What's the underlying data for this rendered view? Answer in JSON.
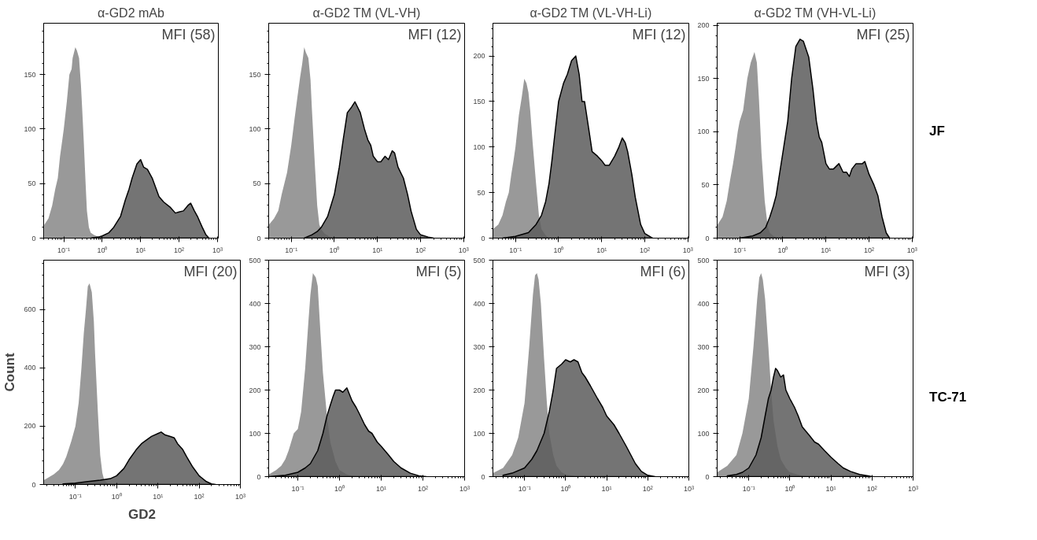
{
  "chart_data": [
    {
      "type": "area",
      "log": "x",
      "title": "α-GD2 mAb",
      "xlim": [
        0.03,
        1050
      ],
      "ylim": [
        0,
        197
      ],
      "xticks": [
        {
          "value": 0.1,
          "label": "10⁻¹"
        },
        {
          "value": 1,
          "label": "10⁰"
        },
        {
          "value": 10,
          "label": "10¹"
        },
        {
          "value": 100,
          "label": "10²"
        },
        {
          "value": 1000,
          "label": "10³"
        }
      ],
      "yticks": [
        0,
        50,
        100,
        150
      ],
      "annotations": [
        "MFI (58)"
      ],
      "series": [
        {
          "color": "#999999",
          "x": [
            0.031,
            0.04,
            0.05,
            0.06,
            0.07,
            0.08,
            0.09,
            0.1,
            0.12,
            0.14,
            0.16,
            0.17,
            0.2,
            0.22,
            0.25,
            0.28,
            0.3,
            0.33,
            0.37,
            0.4,
            0.45,
            0.5,
            0.6,
            0.8,
            1
          ],
          "values": [
            12,
            18,
            30,
            45,
            55,
            75,
            88,
            100,
            125,
            150,
            155,
            165,
            175,
            172,
            165,
            140,
            120,
            90,
            50,
            25,
            10,
            5,
            3,
            1,
            0
          ]
        },
        {
          "color": "#5c5c5c",
          "x": [
            0.5,
            0.8,
            1,
            1.5,
            2,
            3,
            4,
            5,
            6,
            8,
            10,
            12,
            15,
            20,
            30,
            40,
            60,
            80,
            100,
            130,
            170,
            200,
            250,
            300,
            400,
            500,
            600
          ],
          "values": [
            0,
            1,
            2,
            5,
            10,
            20,
            35,
            45,
            55,
            68,
            72,
            65,
            63,
            55,
            38,
            33,
            28,
            23,
            24,
            25,
            30,
            32,
            25,
            20,
            10,
            3,
            0
          ]
        }
      ]
    },
    {
      "type": "area",
      "log": "x",
      "title": "α-GD2 TM (VL-VH)",
      "xlim": [
        0.03,
        1050
      ],
      "ylim": [
        0,
        197
      ],
      "xticks": [
        {
          "value": 0.1,
          "label": "10⁻¹"
        },
        {
          "value": 1,
          "label": "10⁰"
        },
        {
          "value": 10,
          "label": "10¹"
        },
        {
          "value": 100,
          "label": "10²"
        },
        {
          "value": 1000,
          "label": "10³"
        }
      ],
      "yticks": [
        0,
        50,
        100,
        150
      ],
      "annotations": [
        "MFI (12)"
      ],
      "series": [
        {
          "color": "#999999",
          "x": [
            0.03,
            0.04,
            0.05,
            0.06,
            0.08,
            0.1,
            0.12,
            0.14,
            0.16,
            0.18,
            0.2,
            0.22,
            0.25,
            0.28,
            0.3,
            0.35,
            0.4,
            0.45,
            0.5,
            0.6,
            0.8,
            1
          ],
          "values": [
            12,
            18,
            25,
            40,
            60,
            85,
            110,
            130,
            147,
            160,
            175,
            170,
            165,
            145,
            120,
            70,
            30,
            12,
            8,
            4,
            1,
            0
          ]
        },
        {
          "color": "#5c5c5c",
          "x": [
            0.2,
            0.3,
            0.4,
            0.5,
            0.7,
            1,
            1.3,
            1.6,
            2,
            2.5,
            3,
            4,
            5,
            6,
            7,
            8,
            10,
            12,
            15,
            18,
            22,
            25,
            30,
            40,
            50,
            60,
            80,
            100,
            150,
            200
          ],
          "values": [
            0,
            3,
            6,
            10,
            20,
            40,
            65,
            90,
            115,
            120,
            125,
            115,
            100,
            90,
            85,
            75,
            70,
            70,
            75,
            72,
            80,
            78,
            65,
            55,
            40,
            25,
            8,
            3,
            1,
            0
          ]
        }
      ]
    },
    {
      "type": "area",
      "log": "x",
      "title": "α-GD2 TM (VL-VH-Li)",
      "xlim": [
        0.03,
        1050
      ],
      "ylim": [
        0,
        236
      ],
      "xticks": [
        {
          "value": 0.1,
          "label": "10⁻¹"
        },
        {
          "value": 1,
          "label": "10⁰"
        },
        {
          "value": 10,
          "label": "10¹"
        },
        {
          "value": 100,
          "label": "10²"
        },
        {
          "value": 1000,
          "label": "10³"
        }
      ],
      "yticks": [
        0,
        50,
        100,
        150,
        200
      ],
      "annotations": [
        "MFI (12)"
      ],
      "series": [
        {
          "color": "#999999",
          "x": [
            0.03,
            0.04,
            0.05,
            0.06,
            0.07,
            0.08,
            0.09,
            0.1,
            0.12,
            0.14,
            0.16,
            0.18,
            0.2,
            0.22,
            0.25,
            0.3,
            0.35,
            0.4,
            0.5,
            0.6
          ],
          "values": [
            10,
            15,
            25,
            40,
            50,
            70,
            85,
            100,
            135,
            155,
            175,
            170,
            160,
            140,
            105,
            60,
            25,
            10,
            3,
            0
          ]
        },
        {
          "color": "#5c5c5c",
          "x": [
            0.05,
            0.1,
            0.2,
            0.3,
            0.4,
            0.5,
            0.6,
            0.7,
            0.8,
            1,
            1.3,
            1.6,
            2,
            2.5,
            3,
            3.5,
            4,
            5,
            6,
            8,
            10,
            12,
            15,
            20,
            25,
            30,
            35,
            40,
            50,
            60,
            80,
            100,
            150
          ],
          "values": [
            0,
            2,
            6,
            15,
            25,
            40,
            60,
            85,
            110,
            150,
            170,
            180,
            195,
            200,
            180,
            150,
            150,
            120,
            95,
            90,
            85,
            80,
            80,
            90,
            100,
            110,
            105,
            95,
            70,
            45,
            15,
            5,
            0
          ]
        }
      ]
    },
    {
      "type": "area",
      "log": "x",
      "title": "α-GD2 TM (VH-VL-Li)",
      "xlim": [
        0.03,
        1050
      ],
      "ylim": [
        0,
        202
      ],
      "xticks": [
        {
          "value": 0.1,
          "label": "10⁻¹"
        },
        {
          "value": 1,
          "label": "10⁰"
        },
        {
          "value": 10,
          "label": "10¹"
        },
        {
          "value": 100,
          "label": "10²"
        },
        {
          "value": 1000,
          "label": "10³"
        }
      ],
      "yticks": [
        0,
        50,
        100,
        150,
        200
      ],
      "annotations": [
        "MFI (25)",
        "JF"
      ],
      "series": [
        {
          "color": "#999999",
          "x": [
            0.03,
            0.04,
            0.05,
            0.06,
            0.07,
            0.08,
            0.09,
            0.1,
            0.12,
            0.15,
            0.18,
            0.22,
            0.25,
            0.28,
            0.32,
            0.38,
            0.45,
            0.5,
            0.6,
            0.8
          ],
          "values": [
            12,
            20,
            35,
            55,
            70,
            85,
            100,
            110,
            120,
            150,
            165,
            175,
            165,
            130,
            80,
            35,
            10,
            5,
            2,
            0
          ]
        },
        {
          "color": "#5c5c5c",
          "x": [
            0.1,
            0.2,
            0.3,
            0.4,
            0.5,
            0.6,
            0.7,
            0.8,
            1,
            1.3,
            1.6,
            2,
            2.5,
            3,
            4,
            5,
            6,
            7,
            8,
            10,
            12,
            15,
            20,
            25,
            30,
            35,
            40,
            50,
            70,
            80,
            100,
            130,
            160,
            200,
            250,
            300
          ],
          "values": [
            0,
            2,
            5,
            10,
            20,
            30,
            40,
            55,
            80,
            110,
            150,
            180,
            187,
            185,
            170,
            140,
            110,
            95,
            90,
            70,
            65,
            65,
            70,
            62,
            62,
            58,
            65,
            70,
            70,
            72,
            60,
            50,
            40,
            20,
            5,
            0
          ]
        }
      ]
    },
    {
      "type": "area",
      "log": "x",
      "xlabel": "GD2",
      "ylabel": "Count",
      "xlim": [
        0.017,
        1000
      ],
      "ylim": [
        0,
        770
      ],
      "xticks": [
        {
          "value": 0.1,
          "label": "10⁻¹"
        },
        {
          "value": 1,
          "label": "10⁰"
        },
        {
          "value": 10,
          "label": "10¹"
        },
        {
          "value": 100,
          "label": "10²"
        },
        {
          "value": 1000,
          "label": "10³"
        }
      ],
      "yticks": [
        0,
        200,
        400,
        600
      ],
      "annotations": [
        "MFI (20)"
      ],
      "series": [
        {
          "color": "#999999",
          "x": [
            0.017,
            0.02,
            0.03,
            0.04,
            0.05,
            0.06,
            0.08,
            0.1,
            0.12,
            0.14,
            0.16,
            0.18,
            0.2,
            0.22,
            0.25,
            0.28,
            0.3,
            0.35,
            0.4,
            0.45,
            0.5,
            0.6,
            0.8
          ],
          "values": [
            15,
            20,
            35,
            50,
            70,
            95,
            150,
            200,
            280,
            400,
            520,
            600,
            680,
            690,
            660,
            560,
            450,
            250,
            100,
            40,
            15,
            5,
            0
          ]
        },
        {
          "color": "#5c5c5c",
          "x": [
            0.05,
            0.1,
            0.2,
            0.4,
            0.7,
            1,
            1.5,
            2,
            3,
            4,
            5,
            7,
            10,
            12,
            15,
            20,
            25,
            30,
            40,
            50,
            70,
            100,
            150,
            200,
            250
          ],
          "values": [
            2,
            5,
            10,
            15,
            20,
            30,
            55,
            85,
            120,
            140,
            150,
            165,
            175,
            180,
            170,
            165,
            160,
            140,
            120,
            95,
            60,
            30,
            10,
            2,
            0
          ]
        }
      ]
    },
    {
      "type": "area",
      "log": "x",
      "xlim": [
        0.02,
        1000
      ],
      "ylim": [
        0,
        500
      ],
      "xticks": [
        {
          "value": 0.1,
          "label": "10⁻¹"
        },
        {
          "value": 1,
          "label": "10⁰"
        },
        {
          "value": 10,
          "label": "10¹"
        },
        {
          "value": 100,
          "label": "10²"
        },
        {
          "value": 1000,
          "label": "10³"
        }
      ],
      "yticks": [
        0,
        100,
        200,
        300,
        400,
        500
      ],
      "annotations": [
        "MFI (5)"
      ],
      "series": [
        {
          "color": "#999999",
          "x": [
            0.02,
            0.03,
            0.04,
            0.05,
            0.06,
            0.08,
            0.1,
            0.12,
            0.15,
            0.18,
            0.2,
            0.23,
            0.27,
            0.3,
            0.35,
            0.4,
            0.5,
            0.6,
            0.8,
            1,
            1.5,
            2,
            3
          ],
          "values": [
            5,
            15,
            25,
            40,
            60,
            100,
            110,
            150,
            250,
            360,
            420,
            470,
            460,
            440,
            330,
            240,
            140,
            80,
            35,
            15,
            5,
            2,
            0
          ]
        },
        {
          "color": "#5c5c5c",
          "x": [
            0.02,
            0.05,
            0.1,
            0.15,
            0.2,
            0.3,
            0.4,
            0.5,
            0.6,
            0.7,
            0.8,
            1,
            1.2,
            1.5,
            2,
            2.5,
            3,
            4,
            5,
            6,
            8,
            10,
            15,
            20,
            30,
            50,
            80,
            120
          ],
          "values": [
            0,
            3,
            10,
            20,
            30,
            60,
            100,
            140,
            165,
            185,
            200,
            200,
            195,
            205,
            175,
            160,
            145,
            120,
            105,
            100,
            80,
            70,
            50,
            35,
            20,
            8,
            2,
            0
          ]
        }
      ]
    },
    {
      "type": "area",
      "log": "x",
      "xlim": [
        0.017,
        1000
      ],
      "ylim": [
        0,
        500
      ],
      "xticks": [
        {
          "value": 0.1,
          "label": "10⁻¹"
        },
        {
          "value": 1,
          "label": "10⁰"
        },
        {
          "value": 10,
          "label": "10¹"
        },
        {
          "value": 100,
          "label": "10²"
        },
        {
          "value": 1000,
          "label": "10³"
        }
      ],
      "yticks": [
        0,
        100,
        200,
        300,
        400,
        500
      ],
      "annotations": [
        "MFI (6)"
      ],
      "series": [
        {
          "color": "#999999",
          "x": [
            0.017,
            0.03,
            0.05,
            0.07,
            0.1,
            0.13,
            0.16,
            0.18,
            0.2,
            0.22,
            0.25,
            0.3,
            0.35,
            0.4,
            0.5,
            0.6,
            0.8,
            1,
            2
          ],
          "values": [
            8,
            20,
            50,
            90,
            170,
            300,
            420,
            465,
            470,
            455,
            400,
            270,
            170,
            100,
            50,
            25,
            10,
            5,
            0
          ]
        },
        {
          "color": "#5c5c5c",
          "x": [
            0.03,
            0.05,
            0.1,
            0.15,
            0.2,
            0.3,
            0.4,
            0.5,
            0.6,
            0.8,
            1,
            1.3,
            1.6,
            2,
            2.5,
            3,
            4,
            6,
            8,
            10,
            15,
            20,
            30,
            50,
            70,
            100,
            150
          ],
          "values": [
            3,
            8,
            20,
            40,
            60,
            100,
            150,
            200,
            250,
            260,
            270,
            265,
            270,
            265,
            240,
            230,
            210,
            180,
            160,
            140,
            120,
            100,
            70,
            30,
            12,
            3,
            0
          ]
        }
      ]
    },
    {
      "type": "area",
      "log": "x",
      "xlim": [
        0.017,
        1000
      ],
      "ylim": [
        0,
        500
      ],
      "xticks": [
        {
          "value": 0.1,
          "label": "10⁻¹"
        },
        {
          "value": 1,
          "label": "10⁰"
        },
        {
          "value": 10,
          "label": "10¹"
        },
        {
          "value": 100,
          "label": "10²"
        },
        {
          "value": 1000,
          "label": "10³"
        }
      ],
      "yticks": [
        0,
        100,
        200,
        300,
        400,
        500
      ],
      "annotations": [
        "MFI (3)",
        "TC-71"
      ],
      "series": [
        {
          "color": "#999999",
          "x": [
            0.017,
            0.03,
            0.05,
            0.07,
            0.1,
            0.13,
            0.16,
            0.18,
            0.2,
            0.22,
            0.25,
            0.3,
            0.35,
            0.4,
            0.5,
            0.6,
            0.8,
            1,
            2,
            3
          ],
          "values": [
            10,
            25,
            50,
            100,
            180,
            300,
            410,
            460,
            470,
            455,
            410,
            300,
            200,
            130,
            70,
            40,
            20,
            10,
            2,
            0
          ]
        },
        {
          "color": "#5c5c5c",
          "x": [
            0.03,
            0.05,
            0.07,
            0.1,
            0.15,
            0.2,
            0.25,
            0.3,
            0.35,
            0.4,
            0.45,
            0.5,
            0.6,
            0.7,
            0.8,
            1,
            1.3,
            1.6,
            2,
            3,
            4,
            5,
            7,
            10,
            15,
            20,
            30,
            50,
            80,
            100
          ],
          "values": [
            2,
            5,
            10,
            20,
            50,
            90,
            140,
            180,
            200,
            230,
            250,
            245,
            230,
            235,
            200,
            180,
            160,
            140,
            115,
            95,
            80,
            75,
            60,
            45,
            30,
            20,
            12,
            5,
            2,
            0
          ]
        }
      ]
    }
  ]
}
